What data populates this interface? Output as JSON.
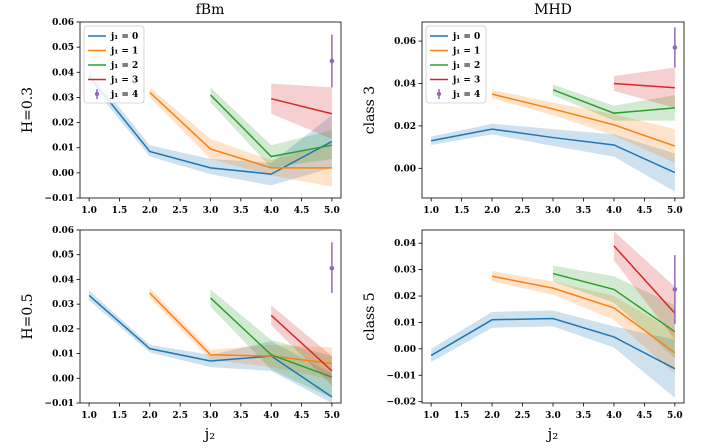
{
  "figure": {
    "col_titles": [
      "fBm",
      "MHD"
    ],
    "x_axis_label": "j₂"
  },
  "legend": {
    "entries": [
      "j₁ = 0",
      "j₁ = 1",
      "j₁ = 2",
      "j₁ = 3",
      "j₁ = 4"
    ]
  },
  "colors": {
    "j1_0": "#1f77b4",
    "j1_1": "#ff7f0e",
    "j1_2": "#2ca02c",
    "j1_3": "#d62728",
    "j1_4": "#9467bd"
  },
  "chart_data": [
    {
      "type": "line",
      "title": "fBm",
      "ylabel": "H=0.3",
      "xlabel": "",
      "xlim": [
        0.85,
        5.15
      ],
      "ylim": [
        -0.01,
        0.06
      ],
      "xticks": [
        "1.0",
        "1.5",
        "2.0",
        "2.5",
        "3.0",
        "3.5",
        "4.0",
        "4.5",
        "5.0"
      ],
      "yticks": [
        "−0.01",
        "0.00",
        "0.01",
        "0.02",
        "0.03",
        "0.04",
        "0.05",
        "0.06"
      ],
      "legend": "top-left",
      "series": [
        {
          "name": "j₁ = 0",
          "x": [
            1,
            2,
            3,
            4,
            5
          ],
          "y": [
            0.0385,
            0.0085,
            0.002,
            -0.0005,
            0.0125
          ],
          "lower": [
            0.036,
            0.0065,
            -0.0005,
            -0.005,
            0.002
          ],
          "upper": [
            0.041,
            0.011,
            0.0055,
            0.004,
            0.023
          ]
        },
        {
          "name": "j₁ = 1",
          "x": [
            2,
            3,
            4,
            5
          ],
          "y": [
            0.032,
            0.0095,
            0.002,
            0.002
          ],
          "lower": [
            0.03,
            0.0055,
            -0.001,
            -0.0055
          ],
          "upper": [
            0.034,
            0.0135,
            0.005,
            0.012
          ]
        },
        {
          "name": "j₁ = 2",
          "x": [
            3,
            4,
            5
          ],
          "y": [
            0.031,
            0.0065,
            0.011
          ],
          "lower": [
            0.028,
            0.002,
            0.0055
          ],
          "upper": [
            0.034,
            0.011,
            0.017
          ]
        },
        {
          "name": "j₁ = 3",
          "x": [
            4,
            5
          ],
          "y": [
            0.0295,
            0.0235
          ],
          "lower": [
            0.0235,
            0.0135
          ],
          "upper": [
            0.0355,
            0.034
          ]
        },
        {
          "name": "j₁ = 4",
          "x": [
            5
          ],
          "y": [
            0.0445
          ],
          "lower": [
            0.034
          ],
          "upper": [
            0.055
          ],
          "errorbar": true
        }
      ]
    },
    {
      "type": "line",
      "title": "MHD",
      "ylabel": "class 3",
      "xlabel": "",
      "xlim": [
        0.85,
        5.15
      ],
      "ylim": [
        -0.014,
        0.069
      ],
      "xticks": [
        "1.0",
        "1.5",
        "2.0",
        "2.5",
        "3.0",
        "3.5",
        "4.0",
        "4.5",
        "5.0"
      ],
      "yticks": [
        "0.00",
        "0.02",
        "0.04",
        "0.06"
      ],
      "legend": "top-left",
      "series": [
        {
          "name": "j₁ = 0",
          "x": [
            1,
            2,
            3,
            4,
            5
          ],
          "y": [
            0.013,
            0.0185,
            0.0145,
            0.011,
            -0.002
          ],
          "lower": [
            0.011,
            0.016,
            0.0105,
            0.0055,
            -0.011
          ],
          "upper": [
            0.015,
            0.021,
            0.0185,
            0.016,
            0.007
          ]
        },
        {
          "name": "j₁ = 1",
          "x": [
            2,
            3,
            4,
            5
          ],
          "y": [
            0.035,
            0.028,
            0.0205,
            0.0105
          ],
          "lower": [
            0.033,
            0.025,
            0.0155,
            0.0025
          ],
          "upper": [
            0.037,
            0.031,
            0.0255,
            0.0185
          ]
        },
        {
          "name": "j₁ = 2",
          "x": [
            3,
            4,
            5
          ],
          "y": [
            0.037,
            0.026,
            0.0285
          ],
          "lower": [
            0.0345,
            0.0225,
            0.0225
          ],
          "upper": [
            0.0395,
            0.0295,
            0.0345
          ]
        },
        {
          "name": "j₁ = 3",
          "x": [
            4,
            5
          ],
          "y": [
            0.04,
            0.038
          ],
          "lower": [
            0.0365,
            0.0285
          ],
          "upper": [
            0.0435,
            0.0475
          ]
        },
        {
          "name": "j₁ = 4",
          "x": [
            5
          ],
          "y": [
            0.057
          ],
          "lower": [
            0.0475
          ],
          "upper": [
            0.0665
          ],
          "errorbar": true
        }
      ]
    },
    {
      "type": "line",
      "title": "",
      "ylabel": "H=0.5",
      "xlabel": "j₂",
      "xlim": [
        0.85,
        5.15
      ],
      "ylim": [
        -0.01,
        0.06
      ],
      "xticks": [
        "1.0",
        "1.5",
        "2.0",
        "2.5",
        "3.0",
        "3.5",
        "4.0",
        "4.5",
        "5.0"
      ],
      "yticks": [
        "−0.01",
        "0.00",
        "0.01",
        "0.02",
        "0.03",
        "0.04",
        "0.05",
        "0.06"
      ],
      "legend": "none",
      "series": [
        {
          "name": "j₁ = 0",
          "x": [
            1,
            2,
            3,
            4,
            5
          ],
          "y": [
            0.0335,
            0.012,
            0.007,
            0.009,
            -0.0075
          ],
          "lower": [
            0.0315,
            0.0105,
            0.0045,
            0.003,
            -0.01
          ],
          "upper": [
            0.0355,
            0.0135,
            0.0095,
            0.015,
            0.002
          ]
        },
        {
          "name": "j₁ = 1",
          "x": [
            2,
            3,
            4,
            5
          ],
          "y": [
            0.0345,
            0.0095,
            0.009,
            0.006
          ],
          "lower": [
            0.0325,
            0.0075,
            0.0045,
            -0.0005
          ],
          "upper": [
            0.0365,
            0.0115,
            0.0135,
            0.0125
          ]
        },
        {
          "name": "j₁ = 2",
          "x": [
            3,
            4,
            5
          ],
          "y": [
            0.0325,
            0.0095,
            0.0005
          ],
          "lower": [
            0.029,
            0.0035,
            -0.008
          ],
          "upper": [
            0.036,
            0.0155,
            0.009
          ]
        },
        {
          "name": "j₁ = 3",
          "x": [
            4,
            5
          ],
          "y": [
            0.0255,
            0.003
          ],
          "lower": [
            0.0215,
            -0.003
          ],
          "upper": [
            0.0295,
            0.009
          ]
        },
        {
          "name": "j₁ = 4",
          "x": [
            5
          ],
          "y": [
            0.0445
          ],
          "lower": [
            0.0345
          ],
          "upper": [
            0.055
          ],
          "errorbar": true
        }
      ]
    },
    {
      "type": "line",
      "title": "",
      "ylabel": "class 5",
      "xlabel": "j₂",
      "xlim": [
        0.85,
        5.15
      ],
      "ylim": [
        -0.0205,
        0.045
      ],
      "xticks": [
        "1.0",
        "1.5",
        "2.0",
        "2.5",
        "3.0",
        "3.5",
        "4.0",
        "4.5",
        "5.0"
      ],
      "yticks": [
        "−0.02",
        "−0.01",
        "0.00",
        "0.01",
        "0.02",
        "0.03",
        "0.04"
      ],
      "legend": "none",
      "series": [
        {
          "name": "j₁ = 0",
          "x": [
            1,
            2,
            3,
            4,
            5
          ],
          "y": [
            -0.0025,
            0.011,
            0.0115,
            0.0045,
            -0.0075
          ],
          "lower": [
            -0.005,
            0.008,
            0.0085,
            0.0005,
            -0.0185
          ],
          "upper": [
            0.0,
            0.014,
            0.0145,
            0.0085,
            0.0035
          ]
        },
        {
          "name": "j₁ = 1",
          "x": [
            2,
            3,
            4,
            5
          ],
          "y": [
            0.0275,
            0.023,
            0.0155,
            -0.0015
          ],
          "lower": [
            0.0255,
            0.0205,
            0.011,
            -0.0095
          ],
          "upper": [
            0.0295,
            0.0255,
            0.02,
            0.0065
          ]
        },
        {
          "name": "j₁ = 2",
          "x": [
            3,
            4,
            5
          ],
          "y": [
            0.0285,
            0.0225,
            0.0065
          ],
          "lower": [
            0.0255,
            0.0175,
            -0.0035
          ],
          "upper": [
            0.0315,
            0.0275,
            0.0165
          ]
        },
        {
          "name": "j₁ = 3",
          "x": [
            4,
            5
          ],
          "y": [
            0.039,
            0.0135
          ],
          "lower": [
            0.0335,
            0.0035
          ],
          "upper": [
            0.0445,
            0.0235
          ]
        },
        {
          "name": "j₁ = 4",
          "x": [
            5
          ],
          "y": [
            0.0225
          ],
          "lower": [
            0.0095
          ],
          "upper": [
            0.0355
          ],
          "errorbar": true
        }
      ]
    }
  ]
}
